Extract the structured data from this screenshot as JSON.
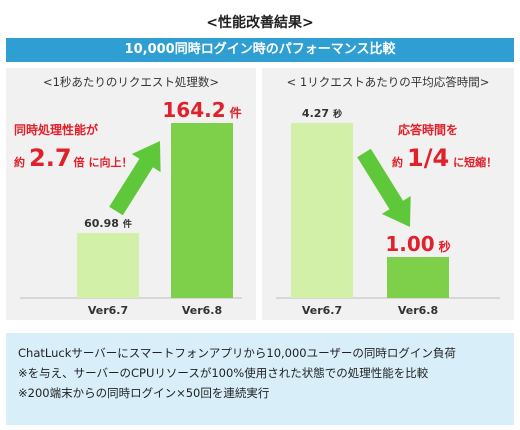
{
  "title": "<性能改善結果>",
  "banner": "10,000同時ログイン時のパフォーマンス比較",
  "colors": {
    "banner": "#2f9fd3",
    "bar_old": "#d3f0a8",
    "bar_new": "#7ed04a",
    "accent_red": "#e0202a",
    "arrow_green": "#5fc83a",
    "footer_bg": "#d8eef8"
  },
  "left_panel": {
    "title": "<1秒あたりのリクエスト処理数>",
    "annotation": {
      "line1": "同時処理性能が",
      "prefix": "約",
      "big": "2.7",
      "suffix": "倍",
      "tail": "に向上！"
    }
  },
  "right_panel": {
    "title": "< 1リクエストあたりの平均応答時間>",
    "annotation": {
      "line1": "応答時間を",
      "prefix": "約",
      "big": "1/4",
      "tail": "に短縮！"
    }
  },
  "chart_data": [
    {
      "type": "bar",
      "title": "<1秒あたりのリクエスト処理数>",
      "categories": [
        "Ver6.7",
        "Ver6.8"
      ],
      "values": [
        60.98,
        164.2
      ],
      "value_labels": [
        "60.98",
        "164.2"
      ],
      "unit": "件",
      "ylim": [
        0,
        164.2
      ],
      "grid": false
    },
    {
      "type": "bar",
      "title": "< 1リクエストあたりの平均応答時間>",
      "categories": [
        "Ver6.7",
        "Ver6.8"
      ],
      "values": [
        4.27,
        1.0
      ],
      "value_labels": [
        "4.27",
        "1.00"
      ],
      "unit": "秒",
      "ylim": [
        0,
        4.27
      ],
      "grid": false
    }
  ],
  "footer": [
    "ChatLuckサーバーにスマートフォンアプリから10,000ユーザーの同時ログイン負荷",
    "※を与え、サーバーのCPUリソースが100%使用された状態での処理性能を比較",
    "※200端末からの同時ログイン×50回を連続実行"
  ]
}
